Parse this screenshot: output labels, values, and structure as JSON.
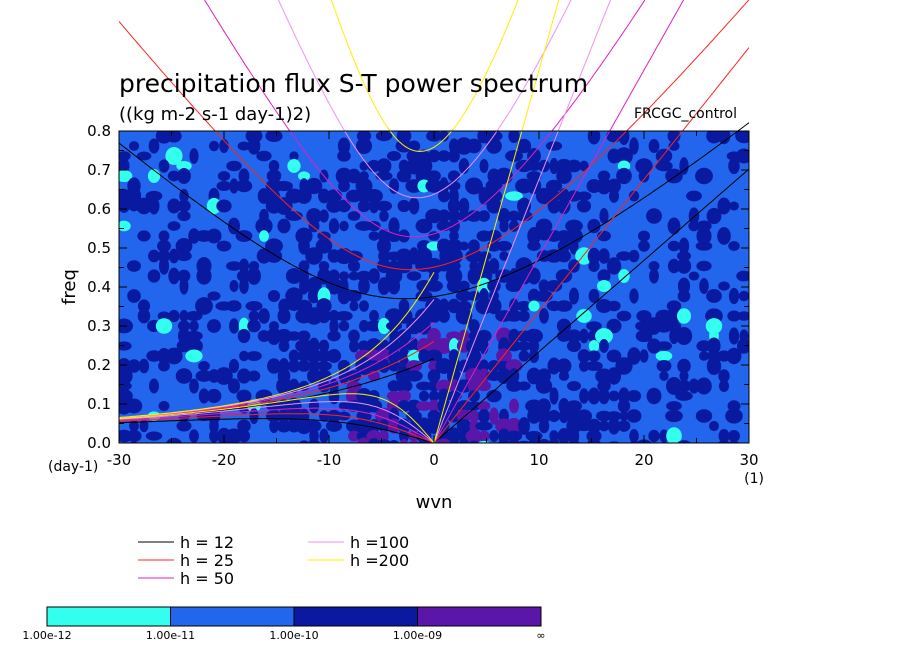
{
  "chart_data": {
    "type": "heatmap",
    "title": "precipitation flux S-T power spectrum",
    "subtitle": "((kg m-2 s-1 day-1)2)",
    "experiment_label": "FRCGC_control",
    "xlabel": "wvn",
    "ylabel": "freq",
    "x_unit": "(1)",
    "y_unit": "(day-1)",
    "xlim": [
      -30,
      30
    ],
    "ylim": [
      0,
      0.8
    ],
    "x_ticks": [
      "-30",
      "-20",
      "-10",
      "0",
      "10",
      "20",
      "30"
    ],
    "y_ticks": [
      "0.0",
      "0.1",
      "0.2",
      "0.3",
      "0.4",
      "0.5",
      "0.6",
      "0.7",
      "0.8"
    ],
    "colorbar": {
      "levels": [
        "1.00e-12",
        "1.00e-11",
        "1.00e-10",
        "1.00e-09",
        "∞"
      ],
      "colors": [
        "#33ffee",
        "#2266ee",
        "#0a1aa0",
        "#5a16a8"
      ]
    },
    "background_level_color": "#2266ee",
    "dispersion_curves": [
      {
        "label": "h = 12",
        "h": 12,
        "color": "#000000"
      },
      {
        "label": "h = 25",
        "h": 25,
        "color": "#ff2222"
      },
      {
        "label": "h = 50",
        "h": 50,
        "color": "#e020c0"
      },
      {
        "label": "h =100",
        "h": 100,
        "color": "#f090f0"
      },
      {
        "label": "h =200",
        "h": 200,
        "color": "#ffee00"
      }
    ]
  }
}
